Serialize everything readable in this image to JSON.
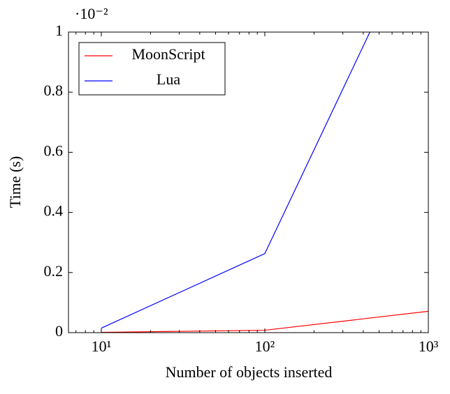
{
  "chart_data": {
    "type": "line",
    "y_multiplier": "·10⁻²",
    "xlabel": "Number of objects inserted",
    "ylabel": "Time (s)",
    "x": [
      10,
      100,
      1000
    ],
    "series": [
      {
        "name": "MoonScript",
        "color": "#ff0000",
        "values": [
          0.001,
          0.008,
          0.071
        ]
      },
      {
        "name": "Lua",
        "color": "#0000ff",
        "values": [
          0.015,
          0.263,
          1.41
        ]
      }
    ],
    "xscale": "log",
    "xlim": [
      6.3,
      1000
    ],
    "xticks": [
      {
        "value": 10,
        "label": "10¹"
      },
      {
        "value": 100,
        "label": "10²"
      },
      {
        "value": 1000,
        "label": "10³"
      }
    ],
    "xminor": [
      7,
      8,
      9,
      20,
      30,
      40,
      50,
      60,
      70,
      80,
      90,
      200,
      300,
      400,
      500,
      600,
      700,
      800,
      900
    ],
    "ylim": [
      0,
      1
    ],
    "yticks": [
      0,
      0.2,
      0.4,
      0.6,
      0.8,
      1
    ],
    "legend": "upper left"
  }
}
